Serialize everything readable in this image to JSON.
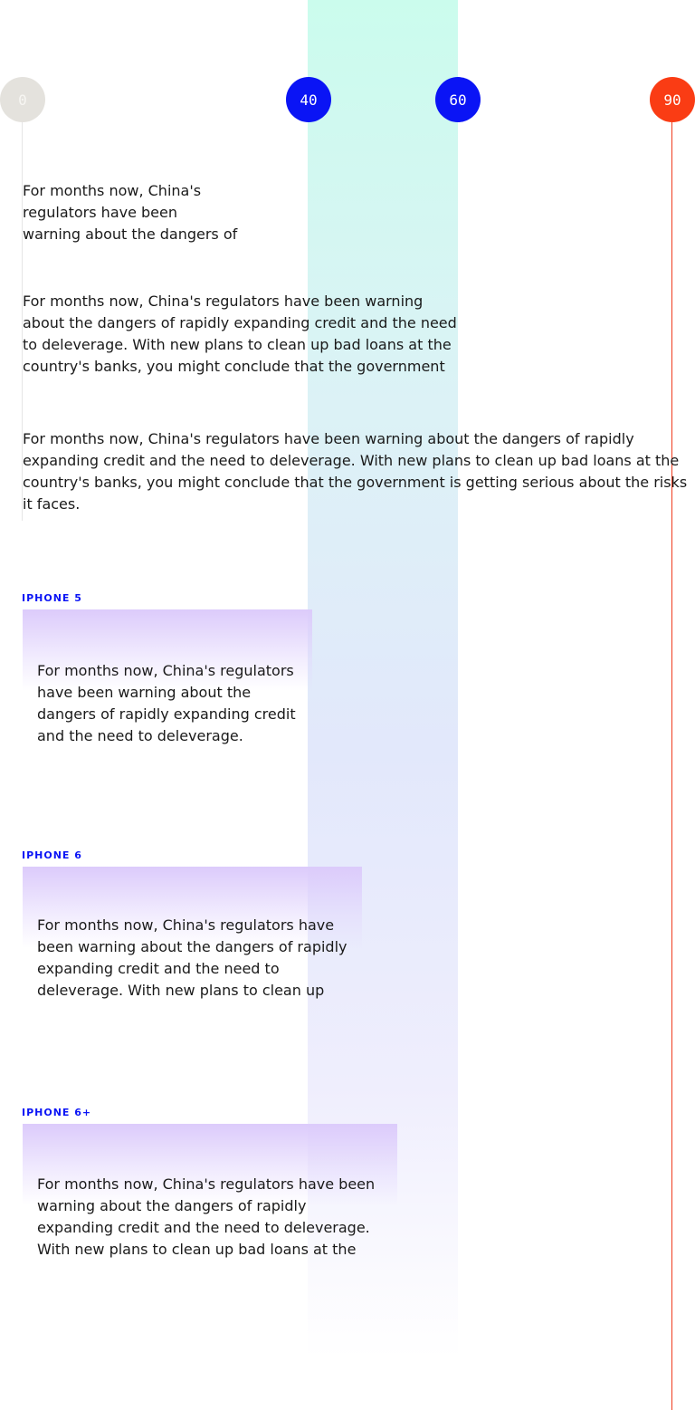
{
  "markers": [
    {
      "label": "0"
    },
    {
      "label": "40"
    },
    {
      "label": "60"
    },
    {
      "label": "90"
    }
  ],
  "colors": {
    "marker_blue": "#0a14f5",
    "marker_red": "#fa3c14",
    "marker_gray": "#e4e2dd",
    "band_top": "#cbfced",
    "device_highlight": "#dccbfb"
  },
  "samples": {
    "narrow": "For months now, China's regulators have been warning about the dangers of rapidly",
    "medium": "For months now, China's regulators have been warning about the dangers of rapidly expanding credit and the need to deleverage. With new plans to clean up bad loans at the country's banks, you might conclude that the government is",
    "wide": "For months now, China's regulators have been warning about the dangers of rapidly expanding credit and the need to deleverage. With new plans to clean up bad loans at the country's banks, you might conclude that the government is getting serious about the risks it faces."
  },
  "devices": [
    {
      "label": "IPHONE 5",
      "text": "For months now, China's regulators have been warning about the dangers of rapidly expanding credit and the need to deleverage."
    },
    {
      "label": "IPHONE 6",
      "text": "For months now, China's regulators have been warning about the dangers of rapidly expanding credit and the need to deleverage. With new plans to clean up bad"
    },
    {
      "label": "IPHONE 6+",
      "text": "For months now, China's regulators have been warning about the dangers of rapidly expanding credit and the need to deleverage. With new plans to clean up bad loans at the country's"
    }
  ]
}
